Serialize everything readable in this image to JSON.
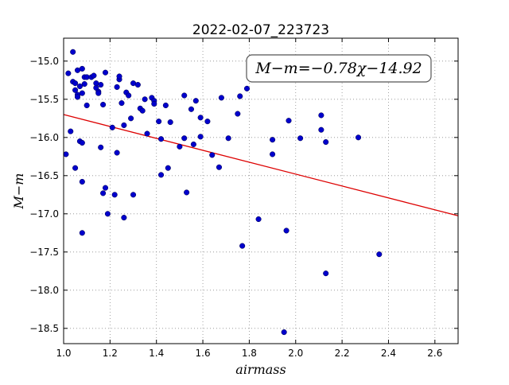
{
  "chart_data": {
    "type": "scatter",
    "title": "2022-02-07_223723",
    "xlabel": "airmass",
    "ylabel": "M−m",
    "xlim": [
      1.0,
      2.7
    ],
    "ylim": [
      -18.7,
      -14.7
    ],
    "y_inverted": false,
    "grid": true,
    "grid_style": "dotted",
    "x_ticks": [
      1.0,
      1.2,
      1.4,
      1.6,
      1.8,
      2.0,
      2.2,
      2.4,
      2.6
    ],
    "x_tick_labels": [
      "1.0",
      "1.2",
      "1.4",
      "1.6",
      "1.8",
      "2.0",
      "2.2",
      "2.4",
      "2.6"
    ],
    "y_ticks": [
      -15.0,
      -15.5,
      -16.0,
      -16.5,
      -17.0,
      -17.5,
      -18.0,
      -18.5
    ],
    "y_tick_labels": [
      "−15.0",
      "−15.5",
      "−16.0",
      "−16.5",
      "−17.0",
      "−17.5",
      "−18.0",
      "−18.5"
    ],
    "annotation": "M−m=−0.78χ−14.92",
    "annotation_placement": "top-right",
    "fit_line": {
      "slope": -0.78,
      "intercept": -14.92,
      "color": "#dd0000"
    },
    "point_color": "#0000cc",
    "points": [
      [
        1.01,
        -16.22
      ],
      [
        1.02,
        -15.16
      ],
      [
        1.03,
        -15.92
      ],
      [
        1.04,
        -14.88
      ],
      [
        1.04,
        -15.27
      ],
      [
        1.05,
        -15.29
      ],
      [
        1.05,
        -15.38
      ],
      [
        1.05,
        -16.4
      ],
      [
        1.06,
        -15.12
      ],
      [
        1.06,
        -15.44
      ],
      [
        1.06,
        -15.47
      ],
      [
        1.07,
        -15.33
      ],
      [
        1.07,
        -16.05
      ],
      [
        1.08,
        -15.1
      ],
      [
        1.08,
        -16.07
      ],
      [
        1.08,
        -15.42
      ],
      [
        1.08,
        -16.58
      ],
      [
        1.08,
        -17.25
      ],
      [
        1.09,
        -15.21
      ],
      [
        1.09,
        -15.3
      ],
      [
        1.1,
        -15.21
      ],
      [
        1.1,
        -15.58
      ],
      [
        1.12,
        -15.21
      ],
      [
        1.13,
        -15.19
      ],
      [
        1.14,
        -15.35
      ],
      [
        1.14,
        -15.29
      ],
      [
        1.15,
        -15.4
      ],
      [
        1.15,
        -15.42
      ],
      [
        1.16,
        -15.31
      ],
      [
        1.16,
        -16.13
      ],
      [
        1.17,
        -15.57
      ],
      [
        1.17,
        -16.73
      ],
      [
        1.18,
        -16.66
      ],
      [
        1.18,
        -15.15
      ],
      [
        1.19,
        -17.0
      ],
      [
        1.21,
        -15.87
      ],
      [
        1.22,
        -16.75
      ],
      [
        1.23,
        -15.34
      ],
      [
        1.23,
        -16.2
      ],
      [
        1.24,
        -15.24
      ],
      [
        1.24,
        -15.2
      ],
      [
        1.25,
        -15.55
      ],
      [
        1.26,
        -15.84
      ],
      [
        1.26,
        -17.05
      ],
      [
        1.27,
        -15.41
      ],
      [
        1.28,
        -15.45
      ],
      [
        1.29,
        -15.75
      ],
      [
        1.3,
        -15.29
      ],
      [
        1.3,
        -16.75
      ],
      [
        1.32,
        -15.31
      ],
      [
        1.33,
        -15.62
      ],
      [
        1.34,
        -15.65
      ],
      [
        1.35,
        -15.5
      ],
      [
        1.36,
        -15.95
      ],
      [
        1.38,
        -15.48
      ],
      [
        1.39,
        -15.52
      ],
      [
        1.39,
        -15.56
      ],
      [
        1.41,
        -15.79
      ],
      [
        1.42,
        -16.02
      ],
      [
        1.42,
        -16.49
      ],
      [
        1.44,
        -15.58
      ],
      [
        1.45,
        -16.4
      ],
      [
        1.46,
        -15.8
      ],
      [
        1.5,
        -16.12
      ],
      [
        1.52,
        -15.45
      ],
      [
        1.52,
        -16.01
      ],
      [
        1.53,
        -16.72
      ],
      [
        1.55,
        -15.63
      ],
      [
        1.56,
        -16.09
      ],
      [
        1.57,
        -15.52
      ],
      [
        1.59,
        -15.99
      ],
      [
        1.59,
        -15.74
      ],
      [
        1.62,
        -15.79
      ],
      [
        1.64,
        -16.23
      ],
      [
        1.67,
        -16.39
      ],
      [
        1.68,
        -15.48
      ],
      [
        1.71,
        -16.01
      ],
      [
        1.75,
        -15.69
      ],
      [
        1.76,
        -15.46
      ],
      [
        1.77,
        -17.42
      ],
      [
        1.79,
        -15.36
      ],
      [
        1.84,
        -17.07
      ],
      [
        1.9,
        -16.03
      ],
      [
        1.9,
        -16.22
      ],
      [
        1.95,
        -18.55
      ],
      [
        1.96,
        -17.22
      ],
      [
        1.97,
        -15.78
      ],
      [
        2.02,
        -16.01
      ],
      [
        2.11,
        -15.71
      ],
      [
        2.11,
        -15.9
      ],
      [
        2.13,
        -16.06
      ],
      [
        2.13,
        -17.78
      ],
      [
        2.27,
        -16.0
      ],
      [
        2.36,
        -17.53
      ]
    ]
  }
}
